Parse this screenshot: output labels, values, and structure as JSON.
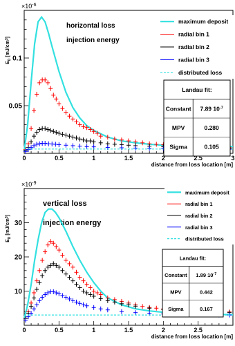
{
  "chart_data": [
    {
      "type": "line",
      "exponent_label": "×10",
      "exponent_power": "-6",
      "ylabel": "E_D [mJ/cm^3]",
      "ylabel_main": "E",
      "ylabel_sub": "D",
      "ylabel_unit": " [mJ/cm",
      "ylabel_sup": "3",
      "ylabel_close": "]",
      "xlabel": "distance from loss location [m]",
      "xlim": [
        0,
        3
      ],
      "ylim": [
        0,
        0.15
      ],
      "xticks": [
        0,
        0.5,
        1,
        1.5,
        2,
        2.5,
        3
      ],
      "xtick_labels": [
        "0",
        "0.5",
        "1",
        "1.5",
        "2",
        "2.5",
        "3"
      ],
      "yticks": [
        0.05,
        0.1
      ],
      "ytick_labels": [
        "0.05",
        "0.1"
      ],
      "annotation_1": "horizontal loss",
      "annotation_2": "injection energy",
      "colors": {
        "maximum": "#33e0e0",
        "bin1": "#ff0000",
        "bin2": "#000000",
        "bin3": "#0000ff",
        "distributed": "#33e0e0"
      },
      "series": [
        {
          "name": "maximum deposit",
          "kind": "curve",
          "x": [
            0,
            0.05,
            0.1,
            0.15,
            0.2,
            0.25,
            0.3,
            0.35,
            0.4,
            0.5,
            0.6,
            0.7,
            0.8,
            0.9,
            1.0,
            1.2,
            1.4,
            1.6,
            1.8,
            2.0,
            2.5,
            3.0
          ],
          "y": [
            0.003,
            0.03,
            0.075,
            0.115,
            0.138,
            0.143,
            0.138,
            0.126,
            0.112,
            0.086,
            0.064,
            0.048,
            0.037,
            0.029,
            0.024,
            0.017,
            0.013,
            0.011,
            0.0095,
            0.0085,
            0.0075,
            0.007
          ]
        },
        {
          "name": "radial bin 1",
          "kind": "points",
          "x": [
            0.02,
            0.06,
            0.1,
            0.14,
            0.18,
            0.22,
            0.26,
            0.3,
            0.34,
            0.38,
            0.42,
            0.46,
            0.5,
            0.55,
            0.6,
            0.65,
            0.7,
            0.75,
            0.8,
            0.85,
            0.9,
            0.95,
            1.0,
            1.05,
            1.1,
            1.2,
            1.3,
            1.4,
            1.5,
            1.6,
            1.7,
            1.8,
            1.9,
            2.0,
            2.2,
            2.4,
            2.6,
            2.8,
            2.95
          ],
          "y": [
            0.004,
            0.01,
            0.026,
            0.045,
            0.062,
            0.074,
            0.077,
            0.077,
            0.074,
            0.068,
            0.061,
            0.057,
            0.052,
            0.047,
            0.043,
            0.039,
            0.036,
            0.033,
            0.03,
            0.028,
            0.027,
            0.025,
            0.023,
            0.021,
            0.018,
            0.017,
            0.015,
            0.014,
            0.013,
            0.012,
            0.011,
            0.01,
            0.0095,
            0.009,
            0.008,
            0.0075,
            0.007,
            0.0065,
            0.006
          ]
        },
        {
          "name": "radial bin 2",
          "kind": "points",
          "x": [
            0.02,
            0.06,
            0.1,
            0.14,
            0.18,
            0.22,
            0.26,
            0.3,
            0.34,
            0.38,
            0.42,
            0.46,
            0.5,
            0.55,
            0.6,
            0.65,
            0.7,
            0.75,
            0.8,
            0.85,
            0.9,
            0.95,
            1.0,
            1.1,
            1.2,
            1.3,
            1.4,
            1.5,
            1.6,
            1.8,
            2.0,
            2.2,
            2.4,
            2.6,
            2.8,
            2.95
          ],
          "y": [
            0.003,
            0.006,
            0.012,
            0.018,
            0.022,
            0.025,
            0.026,
            0.026,
            0.025,
            0.024,
            0.023,
            0.022,
            0.021,
            0.02,
            0.019,
            0.018,
            0.017,
            0.016,
            0.015,
            0.014,
            0.013,
            0.013,
            0.012,
            0.011,
            0.01,
            0.0095,
            0.009,
            0.0085,
            0.008,
            0.0075,
            0.007,
            0.0065,
            0.006,
            0.0058,
            0.0055,
            0.0052
          ]
        },
        {
          "name": "radial bin 3",
          "kind": "points",
          "x": [
            0.02,
            0.06,
            0.1,
            0.14,
            0.18,
            0.22,
            0.26,
            0.3,
            0.35,
            0.4,
            0.45,
            0.5,
            0.6,
            0.7,
            0.8,
            0.9,
            1.0,
            1.2,
            1.4,
            1.6,
            1.8,
            2.0,
            2.2,
            2.4,
            2.6,
            2.8,
            2.95
          ],
          "y": [
            0.002,
            0.004,
            0.006,
            0.008,
            0.0095,
            0.01,
            0.0105,
            0.0105,
            0.01,
            0.0098,
            0.0095,
            0.009,
            0.0085,
            0.008,
            0.0075,
            0.007,
            0.0068,
            0.0062,
            0.0058,
            0.0055,
            0.0052,
            0.005,
            0.0048,
            0.0046,
            0.0045,
            0.0044,
            0.0043
          ]
        },
        {
          "name": "distributed loss",
          "kind": "dashed",
          "x": [
            0,
            3
          ],
          "y": [
            0.0045,
            0.0045
          ]
        }
      ],
      "fit_box": {
        "title": "Landau fit:",
        "rows": [
          {
            "label": "Constant",
            "value": "7.89 10",
            "sup": "-7"
          },
          {
            "label": "MPV",
            "value": "0.280",
            "sup": ""
          },
          {
            "label": "Sigma",
            "value": "0.105",
            "sup": ""
          }
        ]
      }
    },
    {
      "type": "line",
      "exponent_label": "×10",
      "exponent_power": "-9",
      "ylabel": "E_D [mJ/cm^3]",
      "ylabel_main": "E",
      "ylabel_sub": "D",
      "ylabel_unit": " [mJ/cm",
      "ylabel_sup": "3",
      "ylabel_close": "]",
      "xlabel": "distance from loss location [m]",
      "xlim": [
        0,
        3
      ],
      "ylim": [
        0,
        40
      ],
      "xticks": [
        0,
        0.5,
        1,
        1.5,
        2,
        2.5
      ],
      "xtick_labels": [
        "0",
        "0.5",
        "1",
        "1.5",
        "2",
        "2.5"
      ],
      "yticks": [
        10,
        20,
        30
      ],
      "ytick_labels": [
        "10",
        "20",
        "30"
      ],
      "annotation_1": "vertical loss",
      "annotation_2": "injection energy",
      "colors": {
        "maximum": "#33e0e0",
        "bin1": "#ff0000",
        "bin2": "#000000",
        "bin3": "#0000ff",
        "distributed": "#33e0e0"
      },
      "series": [
        {
          "name": "maximum deposit",
          "kind": "curve",
          "x": [
            0,
            0.05,
            0.1,
            0.15,
            0.2,
            0.25,
            0.3,
            0.35,
            0.4,
            0.45,
            0.5,
            0.6,
            0.7,
            0.8,
            0.9,
            1.0,
            1.1,
            1.2,
            1.4,
            1.6,
            1.8,
            2.0,
            2.5,
            3.0
          ],
          "y": [
            2,
            6,
            12,
            19,
            25,
            30,
            33,
            34,
            34,
            33,
            31.5,
            27.5,
            23,
            19,
            15.5,
            12.5,
            10,
            8,
            6,
            4.8,
            4.2,
            3.8,
            3.3,
            3.1
          ]
        },
        {
          "name": "radial bin 1",
          "kind": "points",
          "x": [
            0.02,
            0.06,
            0.1,
            0.14,
            0.18,
            0.22,
            0.26,
            0.3,
            0.34,
            0.38,
            0.42,
            0.46,
            0.5,
            0.55,
            0.6,
            0.65,
            0.7,
            0.75,
            0.8,
            0.85,
            0.9,
            0.95,
            1.0,
            1.05,
            1.1,
            1.2,
            1.3,
            1.4,
            1.5,
            1.6,
            1.7,
            1.8,
            1.9,
            2.0,
            2.2,
            2.4,
            2.6,
            2.8,
            2.95
          ],
          "y": [
            2,
            4,
            6.5,
            9.5,
            13,
            16,
            19,
            21.5,
            23.5,
            24.5,
            24,
            23,
            22,
            20.5,
            19,
            18,
            17,
            15.5,
            14,
            13,
            12,
            11,
            10,
            9.5,
            9,
            8,
            7.5,
            7,
            6.5,
            6,
            5.5,
            5.2,
            5,
            4.8,
            4.5,
            4.3,
            4.1,
            4,
            3.9
          ]
        },
        {
          "name": "radial bin 2",
          "kind": "points",
          "x": [
            0.02,
            0.06,
            0.1,
            0.14,
            0.18,
            0.22,
            0.26,
            0.3,
            0.34,
            0.38,
            0.42,
            0.46,
            0.5,
            0.55,
            0.6,
            0.65,
            0.7,
            0.75,
            0.8,
            0.85,
            0.9,
            0.95,
            1.0,
            1.1,
            1.2,
            1.3,
            1.4,
            1.5,
            1.6,
            1.8,
            2.0,
            2.2,
            2.4,
            2.6,
            2.8,
            2.95
          ],
          "y": [
            2,
            3.5,
            5.5,
            8,
            10.5,
            12.5,
            14.5,
            16,
            17,
            17.5,
            18,
            17.5,
            17,
            16,
            15,
            14,
            13,
            12,
            11,
            10,
            9.5,
            9,
            8.5,
            7.8,
            7.2,
            6.8,
            6.3,
            6,
            5.6,
            5,
            4.6,
            4.3,
            4,
            3.9,
            3.8,
            3.7
          ]
        },
        {
          "name": "radial bin 3",
          "kind": "points",
          "x": [
            0.02,
            0.06,
            0.1,
            0.14,
            0.18,
            0.22,
            0.26,
            0.3,
            0.34,
            0.38,
            0.42,
            0.46,
            0.5,
            0.55,
            0.6,
            0.65,
            0.7,
            0.75,
            0.8,
            0.85,
            0.9,
            1.0,
            1.1,
            1.2,
            1.4,
            1.6,
            1.8,
            2.0,
            2.2,
            2.4,
            2.6,
            2.8,
            2.95
          ],
          "y": [
            1.5,
            2.5,
            3.5,
            4.8,
            6,
            7.2,
            8.2,
            9,
            9.5,
            9.8,
            9.8,
            9.5,
            9.2,
            8.7,
            8.2,
            7.7,
            7.2,
            6.8,
            6.4,
            6,
            5.7,
            5.2,
            4.8,
            4.5,
            4,
            3.7,
            3.5,
            3.3,
            3.2,
            3.1,
            3.05,
            3,
            3
          ]
        },
        {
          "name": "distributed loss",
          "kind": "dashed",
          "x": [
            0,
            3
          ],
          "y": [
            3,
            3
          ]
        }
      ],
      "fit_box": {
        "title": "Landau fit:",
        "rows": [
          {
            "label": "Constant",
            "value": "1.89 10",
            "sup": "-7"
          },
          {
            "label": "MPV",
            "value": "0.442",
            "sup": ""
          },
          {
            "label": "Sigma",
            "value": "0.167",
            "sup": ""
          }
        ]
      }
    }
  ]
}
